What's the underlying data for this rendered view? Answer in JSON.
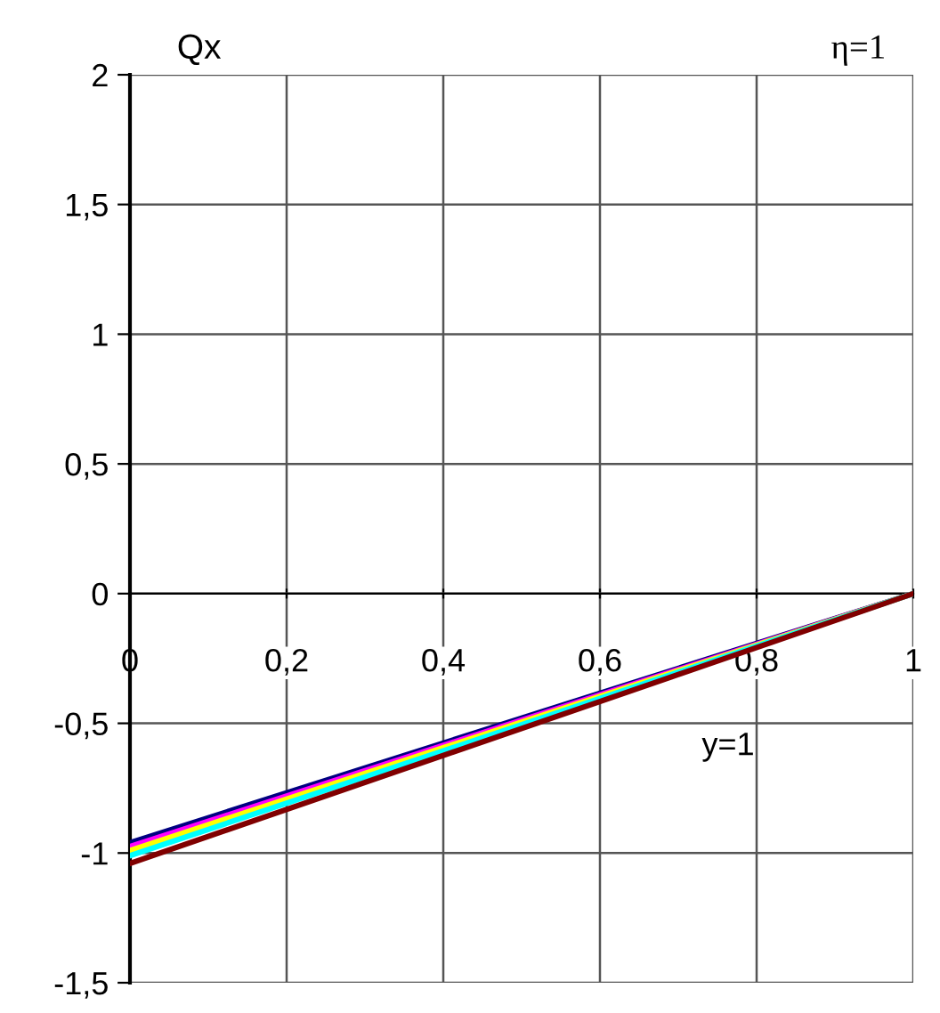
{
  "chart_data": {
    "type": "line",
    "title": "η=1",
    "ylabel": "Qx",
    "x": [
      0,
      1
    ],
    "series": [
      {
        "color": "#000080",
        "values": [
          -0.96,
          0
        ]
      },
      {
        "color": "#ff00ff",
        "values": [
          -0.975,
          0
        ]
      },
      {
        "color": "#ffff00",
        "values": [
          -0.99,
          0
        ]
      },
      {
        "color": "#00ffff",
        "values": [
          -1.01,
          0
        ]
      },
      {
        "color": "#800000",
        "values": [
          -1.04,
          0
        ]
      }
    ],
    "xlim": [
      0,
      1
    ],
    "ylim": [
      -1.5,
      2
    ],
    "xticks": [
      0,
      {
        "value": 0.2,
        "label": "0,2"
      },
      {
        "value": 0.4,
        "label": "0,4"
      },
      {
        "value": 0.6,
        "label": "0,6"
      },
      {
        "value": 0.8,
        "label": "0,8"
      },
      1
    ],
    "yticks": [
      {
        "value": -1.5,
        "label": "-1,5"
      },
      -1,
      {
        "value": -0.5,
        "label": "-0,5"
      },
      0,
      {
        "value": 0.5,
        "label": "0,5"
      },
      1,
      {
        "value": 1.5,
        "label": "1,5"
      },
      2
    ],
    "grid": true,
    "marker": "none",
    "line_style": "solid",
    "annotations": [
      "y=1"
    ]
  }
}
